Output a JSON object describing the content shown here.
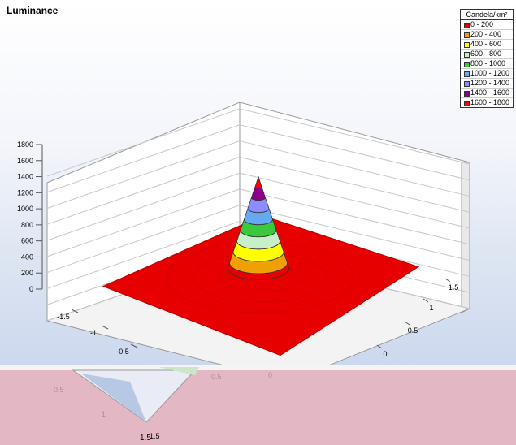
{
  "chart_data": {
    "type": "surface",
    "title": "Luminance",
    "legend_title": "Candela/km²",
    "legend_position": "top-right",
    "grid": true,
    "zlim": [
      0,
      1800
    ],
    "x_ticks": [
      "-1.5",
      "-1",
      "-0.5"
    ],
    "y_ticks": [
      "0",
      "0.5",
      "1",
      "1.5"
    ],
    "z_ticks": [
      "1800",
      "1600",
      "1400",
      "1200",
      "1000",
      "800",
      "600",
      "400",
      "200",
      "0"
    ],
    "bands": [
      {
        "label": "0 - 200",
        "min": 0,
        "max": 200,
        "color": "#e60000"
      },
      {
        "label": "200 - 400",
        "min": 200,
        "max": 400,
        "color": "#f0a000"
      },
      {
        "label": "400 - 600",
        "min": 400,
        "max": 600,
        "color": "#ffff00"
      },
      {
        "label": "600 - 800",
        "min": 600,
        "max": 800,
        "color": "#c8f0c8"
      },
      {
        "label": "800 - 1000",
        "min": 800,
        "max": 1000,
        "color": "#3cc83c"
      },
      {
        "label": "1000 - 1200",
        "min": 1000,
        "max": 1200,
        "color": "#64aaf0"
      },
      {
        "label": "1200 - 1400",
        "min": 1200,
        "max": 1400,
        "color": "#8c8cff"
      },
      {
        "label": "1400 - 1600",
        "min": 1400,
        "max": 1600,
        "color": "#8c008c"
      },
      {
        "label": "1600 - 1800",
        "min": 1600,
        "max": 1800,
        "color": "#ff0000"
      }
    ],
    "surface": {
      "baseline": 100,
      "peak": {
        "x": 0,
        "y": 0,
        "value": 1780
      }
    }
  },
  "glitch_labels": [
    "1.5",
    "1.5",
    "0.5",
    "1",
    "0.5",
    "0"
  ]
}
